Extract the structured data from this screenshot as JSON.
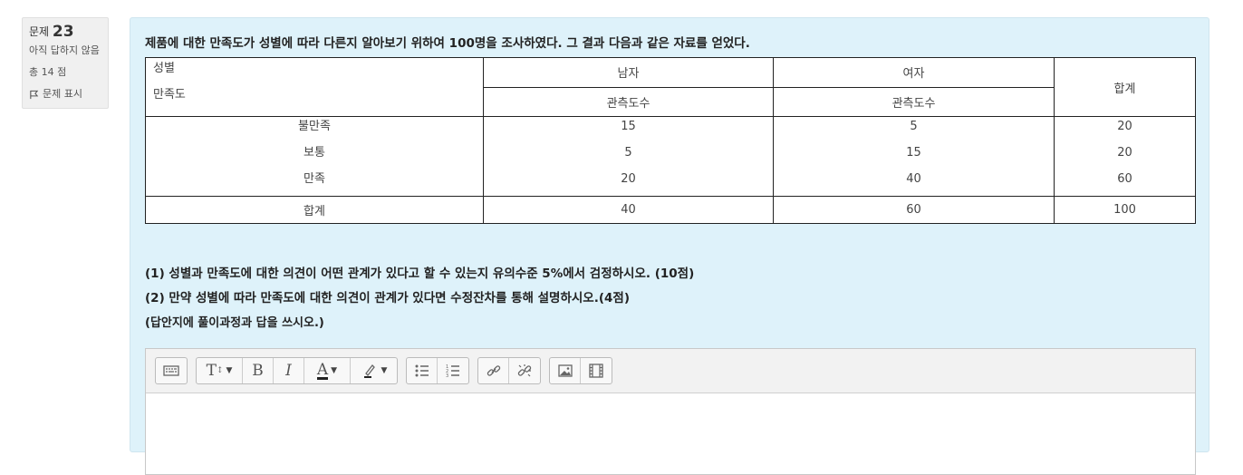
{
  "question_info": {
    "label": "문제",
    "number": "23",
    "status": "아직 답하지 않음",
    "points": "총 14 점",
    "flag_label": "문제 표시"
  },
  "question_title": "제품에 대한 만족도가 성별에 따라 다른지 알아보기 위하여 100명을 조사하였다. 그 결과 다음과 같은 자료를 얻었다.",
  "table": {
    "corner_top": "성별",
    "corner_bottom": "만족도",
    "col_male": "남자",
    "col_female": "여자",
    "col_total": "합계",
    "sub_male": "관측도수",
    "sub_female": "관측도수",
    "rows": [
      {
        "label": "불만족",
        "male": "15",
        "female": "5",
        "total": "20"
      },
      {
        "label": "보통",
        "male": "5",
        "female": "15",
        "total": "20"
      },
      {
        "label": "만족",
        "male": "20",
        "female": "40",
        "total": "60"
      }
    ],
    "total_row": {
      "label": "합계",
      "male": "40",
      "female": "60",
      "total": "100"
    }
  },
  "questions": {
    "q1": "(1) 성별과 만족도에 대한 의견이 어떤 관계가 있다고 할 수 있는지 유의수준 5%에서 검정하시오. (10점)",
    "q2": "(2) 만약 성별에 따라 만족도에 대한 의견이 관계가 있다면 수정잔차를 통해 설명하시오.(4점)",
    "note": "(답안지에 풀이과정과 답을 쓰시오.)"
  },
  "editor": {
    "toolbar": {
      "bold_glyph": "B",
      "italic_glyph": "I",
      "textstyle_glyph": "T",
      "fontcolor_glyph": "A"
    }
  }
}
